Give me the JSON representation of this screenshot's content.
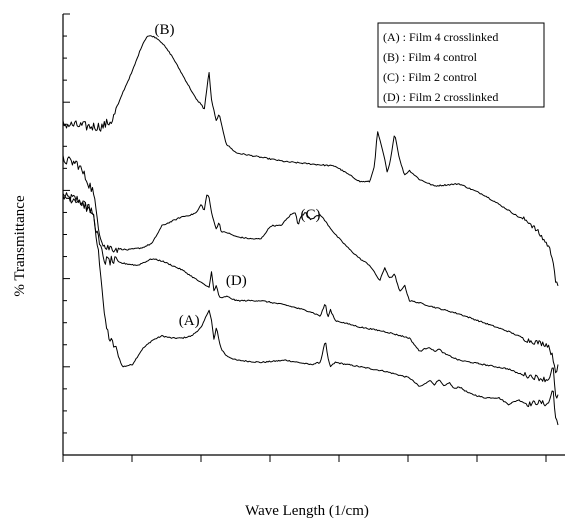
{
  "chart_data": {
    "type": "line",
    "title": "",
    "xlabel": "Wave Length (1/cm)",
    "ylabel": "% Transmittance",
    "grid": false,
    "legend_position": "top-right",
    "xlim": [
      0,
      1
    ],
    "ylim": [
      0,
      1
    ],
    "legend": [
      "(A) : Film 4 crosslinked",
      "(B) : Film 4 control",
      "(C) : Film 2 control",
      "(D) : Film 2 crosslinked"
    ],
    "series": [
      {
        "name": "(A)",
        "label": "(A)",
        "label_at": [
          0.255,
          0.295
        ],
        "x": [
          0.0,
          0.03,
          0.06,
          0.075,
          0.085,
          0.095,
          0.105,
          0.12,
          0.14,
          0.16,
          0.18,
          0.2,
          0.22,
          0.24,
          0.26,
          0.28,
          0.295,
          0.3,
          0.305,
          0.31,
          0.315,
          0.32,
          0.33,
          0.35,
          0.4,
          0.45,
          0.5,
          0.52,
          0.53,
          0.535,
          0.54,
          0.55,
          0.6,
          0.65,
          0.7,
          0.72,
          0.73,
          0.74,
          0.75,
          0.76,
          0.77,
          0.78,
          0.79,
          0.8,
          0.82,
          0.85,
          0.88,
          0.9,
          0.92,
          0.94,
          0.96,
          0.98,
          0.99,
          0.995,
          1.0
        ],
        "y": [
          0.585,
          0.58,
          0.55,
          0.43,
          0.3,
          0.26,
          0.245,
          0.2,
          0.205,
          0.24,
          0.26,
          0.27,
          0.265,
          0.265,
          0.27,
          0.29,
          0.33,
          0.305,
          0.26,
          0.29,
          0.26,
          0.24,
          0.225,
          0.215,
          0.21,
          0.215,
          0.205,
          0.21,
          0.26,
          0.22,
          0.2,
          0.21,
          0.2,
          0.19,
          0.175,
          0.155,
          0.16,
          0.17,
          0.16,
          0.17,
          0.155,
          0.165,
          0.15,
          0.155,
          0.14,
          0.13,
          0.13,
          0.115,
          0.125,
          0.115,
          0.12,
          0.115,
          0.15,
          0.085,
          0.065
        ]
      },
      {
        "name": "(B)",
        "label": "(B)",
        "label_at": [
          0.205,
          0.955
        ],
        "x": [
          0.0,
          0.05,
          0.08,
          0.1,
          0.12,
          0.14,
          0.15,
          0.16,
          0.17,
          0.18,
          0.19,
          0.2,
          0.22,
          0.24,
          0.26,
          0.27,
          0.28,
          0.285,
          0.29,
          0.295,
          0.3,
          0.31,
          0.315,
          0.32,
          0.33,
          0.35,
          0.4,
          0.45,
          0.5,
          0.55,
          0.6,
          0.62,
          0.63,
          0.635,
          0.64,
          0.65,
          0.655,
          0.66,
          0.67,
          0.68,
          0.69,
          0.7,
          0.72,
          0.75,
          0.8,
          0.85,
          0.9,
          0.92,
          0.94,
          0.96,
          0.98,
          0.99,
          0.995,
          1.0
        ],
        "y": [
          0.75,
          0.745,
          0.745,
          0.76,
          0.82,
          0.87,
          0.9,
          0.93,
          0.95,
          0.95,
          0.945,
          0.935,
          0.905,
          0.865,
          0.825,
          0.805,
          0.795,
          0.78,
          0.825,
          0.87,
          0.805,
          0.755,
          0.775,
          0.75,
          0.705,
          0.685,
          0.675,
          0.665,
          0.66,
          0.655,
          0.62,
          0.62,
          0.66,
          0.735,
          0.715,
          0.67,
          0.64,
          0.66,
          0.73,
          0.67,
          0.635,
          0.645,
          0.625,
          0.61,
          0.615,
          0.59,
          0.555,
          0.54,
          0.53,
          0.505,
          0.475,
          0.445,
          0.395,
          0.38
        ]
      },
      {
        "name": "(C)",
        "label": "(C)",
        "label_at": [
          0.5,
          0.535
        ],
        "x": [
          0.0,
          0.03,
          0.06,
          0.075,
          0.085,
          0.1,
          0.13,
          0.16,
          0.18,
          0.2,
          0.22,
          0.24,
          0.26,
          0.27,
          0.28,
          0.285,
          0.29,
          0.295,
          0.3,
          0.31,
          0.315,
          0.32,
          0.33,
          0.35,
          0.38,
          0.4,
          0.42,
          0.44,
          0.46,
          0.47,
          0.475,
          0.48,
          0.49,
          0.5,
          0.52,
          0.55,
          0.58,
          0.6,
          0.62,
          0.64,
          0.65,
          0.66,
          0.67,
          0.68,
          0.69,
          0.7,
          0.72,
          0.75,
          0.8,
          0.85,
          0.9,
          0.92,
          0.94,
          0.96,
          0.98,
          0.99,
          0.995,
          1.0
        ],
        "y": [
          0.67,
          0.66,
          0.6,
          0.5,
          0.47,
          0.47,
          0.465,
          0.47,
          0.48,
          0.52,
          0.53,
          0.54,
          0.545,
          0.55,
          0.57,
          0.55,
          0.59,
          0.585,
          0.55,
          0.51,
          0.53,
          0.505,
          0.505,
          0.495,
          0.49,
          0.49,
          0.52,
          0.52,
          0.545,
          0.55,
          0.52,
          0.54,
          0.55,
          0.535,
          0.545,
          0.5,
          0.465,
          0.445,
          0.43,
          0.395,
          0.425,
          0.4,
          0.41,
          0.37,
          0.385,
          0.35,
          0.345,
          0.335,
          0.32,
          0.3,
          0.28,
          0.27,
          0.26,
          0.255,
          0.25,
          0.22,
          0.19,
          0.2
        ]
      },
      {
        "name": "(D)",
        "label": "(D)",
        "label_at": [
          0.35,
          0.385
        ],
        "x": [
          0.0,
          0.03,
          0.06,
          0.075,
          0.085,
          0.1,
          0.12,
          0.15,
          0.18,
          0.2,
          0.22,
          0.24,
          0.26,
          0.28,
          0.295,
          0.3,
          0.305,
          0.31,
          0.315,
          0.32,
          0.33,
          0.35,
          0.4,
          0.45,
          0.5,
          0.52,
          0.53,
          0.535,
          0.54,
          0.55,
          0.6,
          0.65,
          0.7,
          0.72,
          0.73,
          0.74,
          0.75,
          0.76,
          0.77,
          0.78,
          0.8,
          0.85,
          0.9,
          0.92,
          0.94,
          0.96,
          0.98,
          0.99,
          0.995,
          1.0
        ],
        "y": [
          0.585,
          0.58,
          0.55,
          0.47,
          0.44,
          0.44,
          0.435,
          0.43,
          0.445,
          0.44,
          0.43,
          0.42,
          0.405,
          0.39,
          0.38,
          0.415,
          0.37,
          0.385,
          0.36,
          0.355,
          0.36,
          0.35,
          0.35,
          0.34,
          0.325,
          0.315,
          0.345,
          0.31,
          0.33,
          0.305,
          0.29,
          0.28,
          0.265,
          0.235,
          0.24,
          0.245,
          0.235,
          0.24,
          0.23,
          0.225,
          0.215,
          0.205,
          0.195,
          0.185,
          0.18,
          0.175,
          0.17,
          0.2,
          0.13,
          0.135
        ]
      }
    ]
  }
}
